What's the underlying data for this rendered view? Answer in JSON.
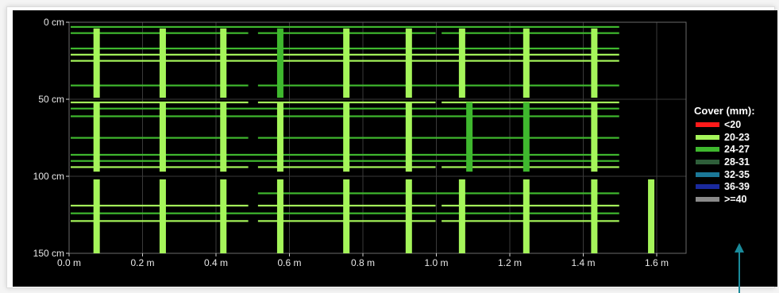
{
  "chart_data": {
    "type": "scatter",
    "title": "",
    "xlabel": "",
    "ylabel": "",
    "x_unit": "m",
    "y_unit": "cm",
    "xlim": [
      0,
      1.68
    ],
    "ylim": [
      0,
      150
    ],
    "y_inverted": true,
    "x_ticks": [
      0.0,
      0.2,
      0.4,
      0.6,
      0.8,
      1.0,
      1.2,
      1.4,
      1.6
    ],
    "x_tick_labels": [
      "0.0 m",
      "0.2 m",
      "0.4 m",
      "0.6 m",
      "0.8 m",
      "1.0 m",
      "1.2 m",
      "1.4 m",
      "1.6 m"
    ],
    "y_ticks": [
      0,
      50,
      100,
      150
    ],
    "y_tick_labels": [
      "0 cm",
      "50 cm",
      "100 cm",
      "150 cm"
    ],
    "grid": true,
    "background": "#000000",
    "legend": {
      "title": "Cover (mm):",
      "placement": "right",
      "entries": [
        {
          "label": "<20",
          "color": "#ff1a1a"
        },
        {
          "label": "20-23",
          "color": "#a5f55a"
        },
        {
          "label": "24-27",
          "color": "#3fb82e"
        },
        {
          "label": "28-31",
          "color": "#2e5e3a"
        },
        {
          "label": "32-35",
          "color": "#1b7898"
        },
        {
          "label": "36-39",
          "color": "#1a2a9e"
        },
        {
          "label": ">=40",
          "color": "#8a8a8a"
        }
      ]
    },
    "vertical_bars": [
      {
        "x": 0.075,
        "y_start": 4,
        "y_end": 49,
        "cover": "20-23"
      },
      {
        "x": 0.075,
        "y_start": 52,
        "y_end": 97,
        "cover": "20-23"
      },
      {
        "x": 0.075,
        "y_start": 102,
        "y_end": 150,
        "cover": "20-23"
      },
      {
        "x": 0.255,
        "y_start": 4,
        "y_end": 49,
        "cover": "20-23"
      },
      {
        "x": 0.255,
        "y_start": 52,
        "y_end": 97,
        "cover": "20-23"
      },
      {
        "x": 0.255,
        "y_start": 102,
        "y_end": 150,
        "cover": "20-23"
      },
      {
        "x": 0.42,
        "y_start": 4,
        "y_end": 49,
        "cover": "20-23"
      },
      {
        "x": 0.42,
        "y_start": 52,
        "y_end": 97,
        "cover": "20-23"
      },
      {
        "x": 0.42,
        "y_start": 102,
        "y_end": 150,
        "cover": "20-23"
      },
      {
        "x": 0.575,
        "y_start": 4,
        "y_end": 49,
        "cover": "24-27"
      },
      {
        "x": 0.575,
        "y_start": 52,
        "y_end": 97,
        "cover": "20-23"
      },
      {
        "x": 0.575,
        "y_start": 102,
        "y_end": 150,
        "cover": "20-23"
      },
      {
        "x": 0.755,
        "y_start": 4,
        "y_end": 49,
        "cover": "20-23"
      },
      {
        "x": 0.755,
        "y_start": 52,
        "y_end": 97,
        "cover": "20-23"
      },
      {
        "x": 0.755,
        "y_start": 102,
        "y_end": 150,
        "cover": "20-23"
      },
      {
        "x": 0.925,
        "y_start": 4,
        "y_end": 49,
        "cover": "20-23"
      },
      {
        "x": 0.925,
        "y_start": 52,
        "y_end": 97,
        "cover": "20-23"
      },
      {
        "x": 0.925,
        "y_start": 102,
        "y_end": 150,
        "cover": "20-23"
      },
      {
        "x": 1.07,
        "y_start": 4,
        "y_end": 49,
        "cover": "20-23"
      },
      {
        "x": 1.09,
        "y_start": 52,
        "y_end": 97,
        "cover": "24-27"
      },
      {
        "x": 1.07,
        "y_start": 102,
        "y_end": 150,
        "cover": "20-23"
      },
      {
        "x": 1.245,
        "y_start": 4,
        "y_end": 49,
        "cover": "20-23"
      },
      {
        "x": 1.245,
        "y_start": 52,
        "y_end": 97,
        "cover": "24-27"
      },
      {
        "x": 1.245,
        "y_start": 102,
        "y_end": 150,
        "cover": "20-23"
      },
      {
        "x": 1.43,
        "y_start": 4,
        "y_end": 49,
        "cover": "20-23"
      },
      {
        "x": 1.43,
        "y_start": 52,
        "y_end": 97,
        "cover": "20-23"
      },
      {
        "x": 1.43,
        "y_start": 102,
        "y_end": 150,
        "cover": "20-23"
      },
      {
        "x": 1.585,
        "y_start": 102,
        "y_end": 150,
        "cover": "20-23"
      }
    ],
    "horizontal_bars": [
      {
        "y": 3,
        "x_start": 0.0,
        "x_end": 1.5,
        "cover": "24-27"
      },
      {
        "y": 7,
        "x_start": 0.0,
        "x_end": 0.49,
        "cover": "24-27"
      },
      {
        "y": 7,
        "x_start": 0.51,
        "x_end": 1.0,
        "cover": "24-27"
      },
      {
        "y": 7,
        "x_start": 1.01,
        "x_end": 1.5,
        "cover": "24-27"
      },
      {
        "y": 17,
        "x_start": 0.0,
        "x_end": 1.5,
        "cover": "24-27"
      },
      {
        "y": 21,
        "x_start": 0.0,
        "x_end": 1.5,
        "cover": "20-23"
      },
      {
        "y": 25,
        "x_start": 0.0,
        "x_end": 1.5,
        "cover": "20-23"
      },
      {
        "y": 41,
        "x_start": 0.0,
        "x_end": 0.49,
        "cover": "24-27"
      },
      {
        "y": 41,
        "x_start": 0.51,
        "x_end": 1.5,
        "cover": "24-27"
      },
      {
        "y": 52,
        "x_start": 0.0,
        "x_end": 0.49,
        "cover": "20-23"
      },
      {
        "y": 52,
        "x_start": 0.51,
        "x_end": 1.0,
        "cover": "20-23"
      },
      {
        "y": 52,
        "x_start": 1.01,
        "x_end": 1.5,
        "cover": "20-23"
      },
      {
        "y": 56,
        "x_start": 0.0,
        "x_end": 1.5,
        "cover": "24-27"
      },
      {
        "y": 61,
        "x_start": 0.0,
        "x_end": 1.5,
        "cover": "24-27"
      },
      {
        "y": 75,
        "x_start": 0.0,
        "x_end": 0.49,
        "cover": "24-27"
      },
      {
        "y": 75,
        "x_start": 0.51,
        "x_end": 1.5,
        "cover": "24-27"
      },
      {
        "y": 86,
        "x_start": 0.0,
        "x_end": 1.5,
        "cover": "24-27"
      },
      {
        "y": 90,
        "x_start": 0.0,
        "x_end": 1.5,
        "cover": "24-27"
      },
      {
        "y": 94,
        "x_start": 0.0,
        "x_end": 0.49,
        "cover": "20-23"
      },
      {
        "y": 94,
        "x_start": 0.51,
        "x_end": 1.0,
        "cover": "20-23"
      },
      {
        "y": 94,
        "x_start": 1.01,
        "x_end": 1.5,
        "cover": "20-23"
      },
      {
        "y": 111,
        "x_start": 0.51,
        "x_end": 1.5,
        "cover": "24-27"
      },
      {
        "y": 119,
        "x_start": 0.0,
        "x_end": 0.49,
        "cover": "20-23"
      },
      {
        "y": 119,
        "x_start": 0.51,
        "x_end": 1.0,
        "cover": "20-23"
      },
      {
        "y": 119,
        "x_start": 1.01,
        "x_end": 1.5,
        "cover": "20-23"
      },
      {
        "y": 124,
        "x_start": 0.0,
        "x_end": 1.5,
        "cover": "24-27"
      },
      {
        "y": 129,
        "x_start": 0.0,
        "x_end": 0.49,
        "cover": "20-23"
      },
      {
        "y": 129,
        "x_start": 0.51,
        "x_end": 1.0,
        "cover": "20-23"
      },
      {
        "y": 129,
        "x_start": 1.01,
        "x_end": 1.5,
        "cover": "20-23"
      }
    ]
  },
  "annotation": {
    "arrow_color": "#1a8a9a",
    "arrow_direction": "up"
  }
}
